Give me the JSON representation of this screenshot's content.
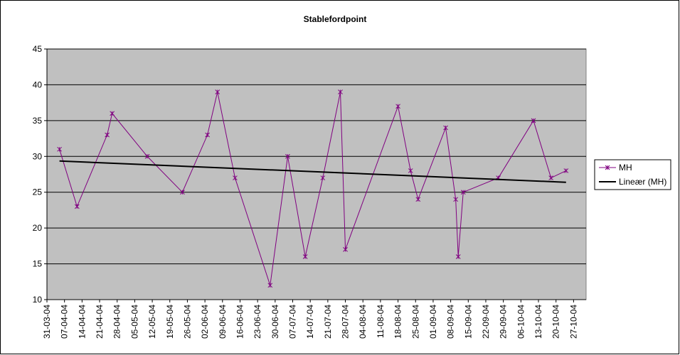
{
  "chart_data": {
    "type": "line",
    "title": "Stablefordpoint",
    "series": [
      {
        "name": "MH",
        "color": "#800080",
        "x": [
          "05-04-04",
          "12-04-04",
          "24-04-04",
          "26-04-04",
          "10-05-04",
          "24-05-04",
          "03-06-04",
          "07-06-04",
          "14-06-04",
          "28-06-04",
          "05-07-04",
          "12-07-04",
          "19-07-04",
          "26-07-04",
          "28-07-04",
          "18-08-04",
          "23-08-04",
          "26-08-04",
          "06-09-04",
          "10-09-04",
          "11-09-04",
          "13-09-04",
          "27-09-04",
          "11-10-04",
          "18-10-04",
          "24-10-04"
        ],
        "values": [
          31,
          23,
          33,
          36,
          30,
          25,
          33,
          39,
          27,
          12,
          30,
          16,
          27,
          39,
          17,
          37,
          28,
          24,
          34,
          24,
          16,
          25,
          27,
          35,
          27,
          28
        ]
      }
    ],
    "trendline": {
      "name": "Lineær (MH)",
      "color": "#000000"
    },
    "xlim": [
      "31-03-04",
      "01-11-04"
    ],
    "xticks": [
      "31-03-04",
      "07-04-04",
      "14-04-04",
      "21-04-04",
      "28-04-04",
      "05-05-04",
      "12-05-04",
      "19-05-04",
      "26-05-04",
      "02-06-04",
      "09-06-04",
      "16-06-04",
      "23-06-04",
      "30-06-04",
      "07-07-04",
      "14-07-04",
      "21-07-04",
      "28-07-04",
      "04-08-04",
      "11-08-04",
      "18-08-04",
      "25-08-04",
      "01-09-04",
      "08-09-04",
      "15-09-04",
      "22-09-04",
      "29-09-04",
      "06-10-04",
      "13-10-04",
      "20-10-04",
      "27-10-04"
    ],
    "ylim": [
      10,
      45
    ],
    "yticks": [
      10,
      15,
      20,
      25,
      30,
      35,
      40,
      45
    ],
    "grid": true,
    "plot_background": "#c0c0c0"
  }
}
